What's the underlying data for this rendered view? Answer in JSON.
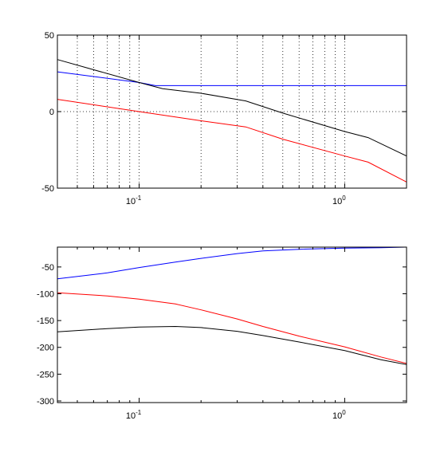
{
  "chart_data": [
    {
      "type": "line",
      "title": "",
      "xlabel": "",
      "ylabel": "",
      "xscale": "log",
      "xlim": [
        0.04,
        2.0
      ],
      "ylim": [
        -50,
        50
      ],
      "grid": "on",
      "legend": "none",
      "yticks": [
        {
          "value": -50,
          "label": "-50"
        },
        {
          "value": 0,
          "label": "0"
        },
        {
          "value": 50,
          "label": "50"
        }
      ],
      "xticks": [
        {
          "value": 0.1,
          "base": "10",
          "exp": "-1"
        },
        {
          "value": 1,
          "base": "10",
          "exp": "0"
        }
      ],
      "series": [
        {
          "color": "#0000ff",
          "x": [
            0.04,
            0.1,
            0.12,
            0.2,
            0.5,
            1.0,
            2.0
          ],
          "y": [
            26,
            19,
            17,
            17,
            17,
            17,
            17
          ]
        },
        {
          "color": "#000000",
          "x": [
            0.04,
            0.1,
            0.13,
            0.2,
            0.33,
            0.5,
            1.0,
            1.3,
            2.0
          ],
          "y": [
            34,
            19,
            15,
            12,
            7,
            -1,
            -13,
            -17,
            -29
          ]
        },
        {
          "color": "#ff0000",
          "x": [
            0.04,
            0.1,
            0.2,
            0.33,
            0.5,
            1.0,
            1.3,
            2.0
          ],
          "y": [
            8,
            0,
            -6,
            -10,
            -18,
            -29,
            -33,
            -46
          ]
        }
      ]
    },
    {
      "type": "line",
      "title": "",
      "xlabel": "",
      "ylabel": "",
      "xscale": "log",
      "xlim": [
        0.04,
        2.0
      ],
      "ylim": [
        -303,
        -13
      ],
      "grid": "off",
      "legend": "none",
      "yticks": [
        {
          "value": -50,
          "label": "-50"
        },
        {
          "value": -100,
          "label": "-100"
        },
        {
          "value": -150,
          "label": "-150"
        },
        {
          "value": -200,
          "label": "-200"
        },
        {
          "value": -250,
          "label": "-250"
        },
        {
          "value": -300,
          "label": "-300"
        }
      ],
      "xticks": [
        {
          "value": 0.1,
          "base": "10",
          "exp": "-1"
        },
        {
          "value": 1,
          "base": "10",
          "exp": "0"
        }
      ],
      "series": [
        {
          "color": "#0000ff",
          "x": [
            0.04,
            0.07,
            0.1,
            0.15,
            0.2,
            0.3,
            0.4,
            0.6,
            1.0,
            1.5,
            2.0
          ],
          "y": [
            -72,
            -61,
            -51,
            -41,
            -34,
            -25,
            -20,
            -17,
            -15,
            -14,
            -13
          ]
        },
        {
          "color": "#ff0000",
          "x": [
            0.04,
            0.07,
            0.1,
            0.15,
            0.2,
            0.3,
            0.4,
            0.6,
            1.0,
            1.5,
            2.0
          ],
          "y": [
            -98,
            -104,
            -110,
            -119,
            -130,
            -147,
            -161,
            -179,
            -199,
            -218,
            -230
          ]
        },
        {
          "color": "#000000",
          "x": [
            0.04,
            0.07,
            0.1,
            0.15,
            0.2,
            0.3,
            0.4,
            0.6,
            1.0,
            1.5,
            2.0
          ],
          "y": [
            -171,
            -165,
            -162,
            -161,
            -163,
            -170,
            -178,
            -190,
            -206,
            -223,
            -232
          ]
        }
      ]
    }
  ]
}
